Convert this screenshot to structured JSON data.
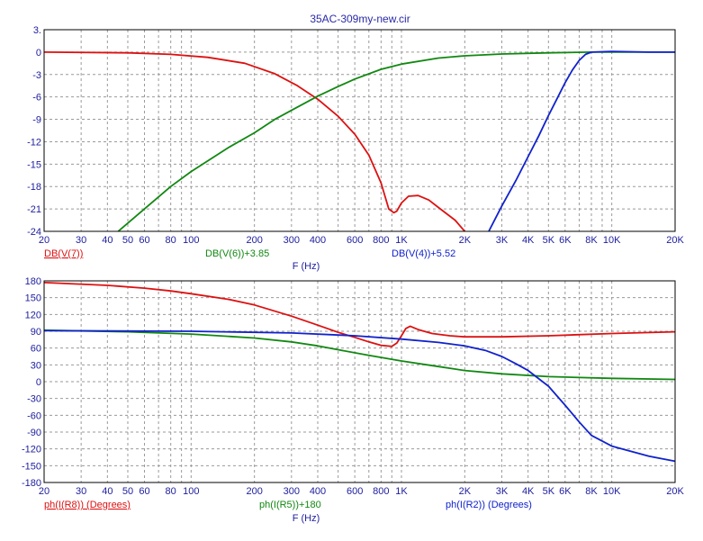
{
  "window": {
    "title": "35AC-309my-new.cir"
  },
  "colors": {
    "red": "#dd1111",
    "green": "#118811",
    "blue": "#1122cc",
    "text": "#2020a0"
  },
  "chart_data": [
    {
      "type": "line",
      "xscale": "log",
      "xlim": [
        20,
        20000
      ],
      "ylim": [
        -24,
        3
      ],
      "yticks": [
        "3.",
        "0",
        "-3",
        "-6",
        "-9",
        "-12",
        "-15",
        "-18",
        "-21",
        "-24"
      ],
      "ytick_values": [
        3,
        0,
        -3,
        -6,
        -9,
        -12,
        -15,
        -18,
        -21,
        -24
      ],
      "xticks": [
        "20",
        "30",
        "40",
        "50",
        "60",
        "80",
        "100",
        "200",
        "300",
        "400",
        "600",
        "800",
        "1K",
        "2K",
        "3K",
        "4K",
        "5K",
        "6K",
        "8K",
        "10K",
        "20K"
      ],
      "xtick_values": [
        20,
        30,
        40,
        50,
        60,
        80,
        100,
        200,
        300,
        400,
        600,
        800,
        1000,
        2000,
        3000,
        4000,
        5000,
        6000,
        8000,
        10000,
        20000
      ],
      "xlabel": "F (Hz)",
      "series": [
        {
          "name": "DB(V(7))",
          "color": "#dd1111",
          "x": [
            20,
            50,
            80,
            120,
            180,
            250,
            320,
            400,
            500,
            600,
            700,
            800,
            870,
            920,
            950,
            1000,
            1080,
            1200,
            1350,
            1500,
            1800,
            2000
          ],
          "y": [
            0,
            -0.1,
            -0.3,
            -0.7,
            -1.5,
            -2.9,
            -4.5,
            -6.3,
            -8.6,
            -11.0,
            -13.8,
            -17.5,
            -21.0,
            -21.5,
            -21.3,
            -20.2,
            -19.3,
            -19.2,
            -19.8,
            -20.8,
            -22.5,
            -24
          ]
        },
        {
          "name": "DB(V(6))+3.85",
          "color": "#118811",
          "x": [
            45,
            60,
            80,
            100,
            150,
            200,
            250,
            300,
            400,
            500,
            600,
            800,
            1000,
            1500,
            2000,
            3000,
            5000,
            8000,
            10000,
            20000
          ],
          "y": [
            -24,
            -21.0,
            -18.0,
            -16.0,
            -12.8,
            -10.8,
            -9.0,
            -7.8,
            -5.9,
            -4.6,
            -3.6,
            -2.3,
            -1.6,
            -0.8,
            -0.5,
            -0.25,
            -0.1,
            0,
            0,
            0
          ]
        },
        {
          "name": "DB(V(4))+5.52",
          "color": "#1122cc",
          "x": [
            2600,
            3000,
            3500,
            4000,
            4500,
            5000,
            5500,
            6000,
            6500,
            7000,
            7500,
            8000,
            10000,
            15000,
            20000
          ],
          "y": [
            -24,
            -20.6,
            -17.2,
            -14.0,
            -11.2,
            -8.5,
            -6.2,
            -4.1,
            -2.4,
            -1.1,
            -0.3,
            0,
            0.1,
            0,
            0
          ]
        }
      ]
    },
    {
      "type": "line",
      "xscale": "log",
      "xlim": [
        20,
        20000
      ],
      "ylim": [
        -180,
        180
      ],
      "yticks": [
        "180",
        "150",
        "120",
        "90",
        "60",
        "30",
        "0",
        "-30",
        "-60",
        "-90",
        "-120",
        "-150",
        "-180"
      ],
      "ytick_values": [
        180,
        150,
        120,
        90,
        60,
        30,
        0,
        -30,
        -60,
        -90,
        -120,
        -150,
        -180
      ],
      "xticks": [
        "20",
        "30",
        "40",
        "50",
        "60",
        "80",
        "100",
        "200",
        "300",
        "400",
        "600",
        "800",
        "1K",
        "2K",
        "3K",
        "4K",
        "5K",
        "6K",
        "8K",
        "10K",
        "20K"
      ],
      "xtick_values": [
        20,
        30,
        40,
        50,
        60,
        80,
        100,
        200,
        300,
        400,
        600,
        800,
        1000,
        2000,
        3000,
        4000,
        5000,
        6000,
        8000,
        10000,
        20000
      ],
      "xlabel": "F (Hz)",
      "series": [
        {
          "name": "ph(I(R8)) (Degrees)",
          "color": "#dd1111",
          "x": [
            20,
            40,
            60,
            80,
            100,
            150,
            200,
            300,
            400,
            500,
            600,
            700,
            800,
            900,
            950,
            1000,
            1050,
            1100,
            1200,
            1400,
            1700,
            2000,
            3000,
            5000,
            10000,
            20000
          ],
          "y": [
            177,
            172,
            167,
            162,
            157,
            147,
            137,
            117,
            101,
            88,
            79,
            71,
            65,
            63,
            69,
            82,
            95,
            99,
            93,
            86,
            82,
            80,
            80,
            82,
            86,
            89
          ]
        },
        {
          "name": "ph(I(R5))+180",
          "color": "#118811",
          "x": [
            20,
            50,
            100,
            200,
            300,
            400,
            500,
            700,
            1000,
            1500,
            2000,
            3000,
            5000,
            10000,
            20000
          ],
          "y": [
            92,
            89,
            85,
            78,
            71,
            64,
            57,
            47,
            37,
            27,
            20,
            14,
            9,
            6,
            4
          ]
        },
        {
          "name": "ph(I(R2)) (Degrees)",
          "color": "#1122cc",
          "x": [
            20,
            100,
            300,
            600,
            1000,
            1500,
            2000,
            2500,
            3000,
            3500,
            4000,
            5000,
            6000,
            7000,
            8000,
            10000,
            15000,
            20000
          ],
          "y": [
            91,
            90,
            87,
            82,
            76,
            70,
            64,
            56,
            45,
            32,
            20,
            -8,
            -42,
            -72,
            -96,
            -115,
            -133,
            -142
          ]
        }
      ]
    }
  ]
}
